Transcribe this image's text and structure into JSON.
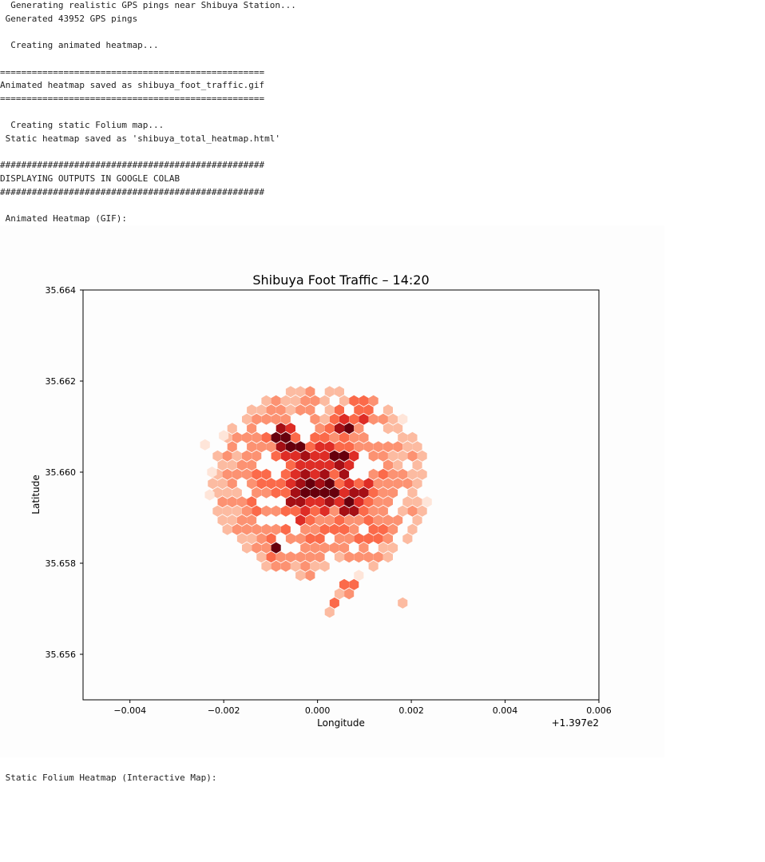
{
  "output": {
    "lines": [
      "  Generating realistic GPS pings near Shibuya Station...",
      " Generated 43952 GPS pings",
      "",
      "  Creating animated heatmap...",
      "",
      "==================================================",
      "Animated heatmap saved as shibuya_foot_traffic.gif",
      "==================================================",
      "",
      "  Creating static Folium map...",
      " Static heatmap saved as 'shibuya_total_heatmap.html'",
      "",
      "##################################################",
      "DISPLAYING OUTPUTS IN GOOGLE COLAB",
      "##################################################",
      "",
      " Animated Heatmap (GIF):"
    ],
    "footer_line": " Static Folium Heatmap (Interactive Map):"
  },
  "chart_data": {
    "type": "heatmap",
    "title": "Shibuya Foot Traffic – 14:20",
    "xlabel": "Longitude",
    "ylabel": "Latitude",
    "x_offset_label": "+1.397e2",
    "xlim": [
      -0.005,
      0.006
    ],
    "ylim": [
      35.655,
      35.664
    ],
    "x_ticks": [
      "−0.004",
      "−0.002",
      "0.000",
      "0.002",
      "0.004",
      "0.006"
    ],
    "x_tick_values": [
      -0.004,
      -0.002,
      0.0,
      0.002,
      0.004,
      0.006
    ],
    "y_ticks": [
      "35.664",
      "35.662",
      "35.660",
      "35.658",
      "35.656"
    ],
    "y_tick_values": [
      35.664,
      35.662,
      35.66,
      35.658,
      35.656
    ],
    "colormap": "Reds",
    "colors": [
      "#fee5d9",
      "#fcbba1",
      "#fc9272",
      "#fb6a4a",
      "#de2d26",
      "#a50f15",
      "#67000d"
    ],
    "hotspots": [
      {
        "lon": 0.00026,
        "lat": 35.65962,
        "intensity": 1.0
      },
      {
        "lon": -0.00072,
        "lat": 35.66057,
        "intensity": 0.85
      },
      {
        "lon": -0.0003,
        "lat": 35.65962,
        "intensity": 0.85
      },
      {
        "lon": 0.00086,
        "lat": 35.65929,
        "intensity": 0.85
      },
      {
        "lon": 0.00095,
        "lat": 35.66136,
        "intensity": 0.7
      },
      {
        "lon": 0.00058,
        "lat": 35.66106,
        "intensity": 0.65
      },
      {
        "lon": -0.00083,
        "lat": 35.6608,
        "intensity": 0.6
      },
      {
        "lon": -0.00041,
        "lat": 35.66041,
        "intensity": 0.6
      },
      {
        "lon": 0.00116,
        "lat": 35.65856,
        "intensity": 0.65
      },
      {
        "lon": -0.00093,
        "lat": 35.65834,
        "intensity": 0.55
      },
      {
        "lon": 0.00047,
        "lat": 35.66025,
        "intensity": 0.6
      },
      {
        "lon": -0.00025,
        "lat": 35.65912,
        "intensity": 0.55
      },
      {
        "lon": 0.00066,
        "lat": 35.6575,
        "intensity": 0.5
      },
      {
        "lon": 0.00026,
        "lat": 35.6571,
        "intensity": 0.55
      },
      {
        "lon": -0.00232,
        "lat": 35.65835,
        "intensity": 0.2
      },
      {
        "lon": -0.00188,
        "lat": 35.65806,
        "intensity": 0.2
      },
      {
        "lon": 0.00188,
        "lat": 35.6571,
        "intensity": 0.3
      }
    ]
  }
}
